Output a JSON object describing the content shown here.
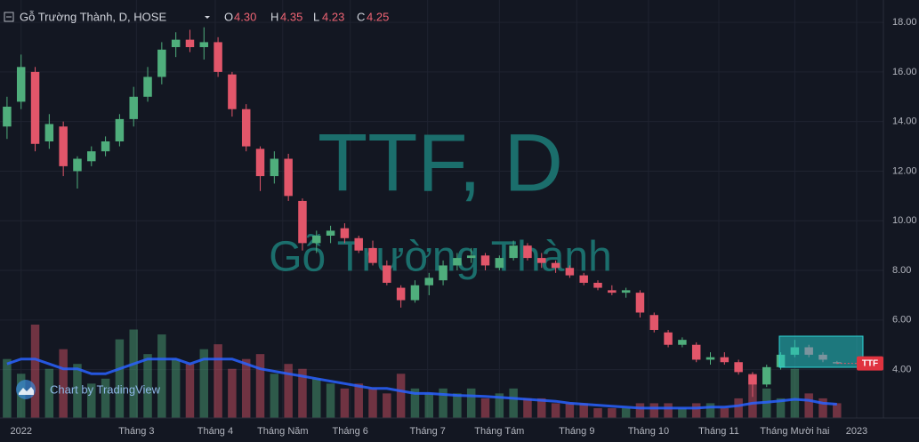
{
  "chart_data": {
    "type": "candlestick",
    "header": {
      "symbol": "Gỗ Trường Thành, D, HOSE",
      "open_label": "O",
      "open": "4.30",
      "high_label": "H",
      "high": "4.35",
      "low_label": "L",
      "low": "4.23",
      "close_label": "C",
      "close": "4.25"
    },
    "watermark_title": "TTF, D",
    "watermark_subtitle": "Gỗ Trường Thành",
    "price_tag": "TTF",
    "branding": "Chart by TradingView",
    "up_color": "#4fae7c",
    "down_color": "#e2566a",
    "volume_ma_color": "#2962ff",
    "grid": true,
    "open": [
      13.8,
      14.8,
      16.0,
      13.2,
      13.8,
      12.0,
      12.4,
      12.8,
      13.2,
      14.1,
      15.0,
      15.8,
      17.0,
      17.3,
      17.0,
      17.2,
      15.9,
      14.5,
      12.9,
      11.8,
      12.5,
      10.8,
      9.1,
      9.4,
      9.7,
      9.3,
      8.9,
      8.2,
      7.3,
      6.8,
      7.4,
      7.6,
      8.2,
      8.5,
      8.6,
      8.1,
      8.5,
      9.0,
      8.5,
      8.3,
      8.1,
      7.8,
      7.5,
      7.2,
      7.1,
      7.1,
      6.2,
      5.5,
      5.0,
      5.0,
      4.4,
      4.5,
      4.3,
      3.8,
      3.4,
      4.1,
      4.6,
      4.9,
      4.6,
      4.3
    ],
    "high": [
      15.0,
      16.7,
      16.2,
      14.3,
      14.0,
      12.6,
      13.0,
      13.4,
      14.3,
      15.4,
      16.2,
      17.2,
      17.6,
      17.7,
      17.8,
      17.4,
      16.0,
      14.7,
      13.0,
      12.8,
      12.7,
      10.9,
      9.6,
      9.8,
      9.9,
      9.4,
      9.2,
      8.4,
      7.4,
      7.6,
      7.9,
      8.4,
      8.7,
      8.9,
      8.7,
      8.6,
      9.2,
      9.1,
      8.7,
      8.4,
      8.2,
      7.9,
      7.6,
      7.4,
      7.3,
      7.2,
      6.3,
      5.6,
      5.3,
      5.1,
      4.7,
      4.7,
      4.4,
      3.9,
      4.2,
      4.7,
      5.2,
      5.0,
      4.7,
      4.35
    ],
    "low": [
      13.3,
      14.5,
      12.8,
      12.9,
      11.8,
      11.3,
      12.2,
      12.6,
      13.0,
      13.8,
      14.8,
      15.5,
      16.6,
      16.8,
      16.5,
      15.8,
      14.2,
      12.8,
      11.2,
      11.5,
      10.8,
      8.8,
      8.7,
      9.1,
      9.1,
      8.7,
      8.2,
      7.4,
      6.5,
      6.7,
      7.0,
      7.4,
      8.0,
      8.3,
      8.0,
      8.0,
      8.4,
      8.4,
      8.1,
      7.9,
      7.7,
      7.4,
      7.2,
      7.0,
      6.9,
      6.1,
      5.5,
      4.9,
      4.9,
      4.3,
      4.2,
      4.2,
      3.8,
      2.9,
      3.3,
      4.0,
      4.5,
      4.5,
      4.3,
      4.23
    ],
    "close": [
      14.6,
      16.2,
      13.1,
      13.9,
      12.2,
      12.5,
      12.8,
      13.2,
      14.1,
      15.0,
      15.8,
      16.9,
      17.3,
      17.0,
      17.2,
      16.0,
      14.5,
      13.0,
      11.8,
      12.5,
      11.0,
      9.1,
      9.4,
      9.6,
      9.3,
      8.8,
      8.3,
      7.5,
      6.8,
      7.4,
      7.7,
      8.2,
      8.5,
      8.6,
      8.2,
      8.5,
      9.0,
      8.5,
      8.3,
      8.1,
      7.8,
      7.5,
      7.3,
      7.1,
      7.2,
      6.3,
      5.6,
      5.0,
      5.2,
      4.4,
      4.5,
      4.3,
      3.9,
      3.4,
      4.1,
      4.6,
      4.9,
      4.6,
      4.4,
      4.25
    ],
    "volume": [
      1.2,
      0.9,
      1.9,
      1.0,
      1.4,
      1.1,
      0.7,
      0.8,
      1.6,
      1.8,
      1.3,
      1.7,
      1.2,
      1.1,
      1.4,
      1.5,
      1.0,
      1.2,
      1.3,
      0.9,
      1.1,
      1.0,
      0.8,
      0.7,
      0.6,
      0.7,
      0.6,
      0.5,
      0.9,
      0.6,
      0.5,
      0.6,
      0.5,
      0.6,
      0.4,
      0.5,
      0.6,
      0.4,
      0.4,
      0.3,
      0.3,
      0.3,
      0.2,
      0.2,
      0.2,
      0.3,
      0.3,
      0.3,
      0.2,
      0.3,
      0.3,
      0.2,
      0.4,
      0.9,
      0.6,
      0.4,
      1.0,
      0.5,
      0.4,
      0.3
    ],
    "volume_ma": [
      1.1,
      1.2,
      1.2,
      1.1,
      1.0,
      1.0,
      0.9,
      0.9,
      1.0,
      1.1,
      1.2,
      1.2,
      1.2,
      1.1,
      1.2,
      1.2,
      1.2,
      1.1,
      1.0,
      0.95,
      0.9,
      0.85,
      0.8,
      0.75,
      0.7,
      0.65,
      0.6,
      0.6,
      0.55,
      0.5,
      0.5,
      0.48,
      0.46,
      0.45,
      0.44,
      0.42,
      0.4,
      0.38,
      0.36,
      0.34,
      0.3,
      0.28,
      0.26,
      0.24,
      0.22,
      0.2,
      0.2,
      0.2,
      0.2,
      0.2,
      0.22,
      0.22,
      0.25,
      0.3,
      0.32,
      0.35,
      0.38,
      0.36,
      0.3,
      0.28
    ],
    "xlim": [
      -0.5,
      62.3
    ],
    "xticks": [
      {
        "value": 1,
        "label": "2022"
      },
      {
        "value": 9.2,
        "label": "Tháng 3"
      },
      {
        "value": 14.8,
        "label": "Tháng 4"
      },
      {
        "value": 19.6,
        "label": "Tháng Năm"
      },
      {
        "value": 24.4,
        "label": "Tháng 6"
      },
      {
        "value": 29.9,
        "label": "Tháng 7"
      },
      {
        "value": 35,
        "label": "Tháng Tám"
      },
      {
        "value": 40.5,
        "label": "Tháng 9"
      },
      {
        "value": 45.6,
        "label": "Tháng 10"
      },
      {
        "value": 50.6,
        "label": "Tháng 11"
      },
      {
        "value": 56,
        "label": "Tháng Mười hai"
      },
      {
        "value": 60.4,
        "label": "2023"
      }
    ],
    "ylim": [
      2.05,
      18.9
    ],
    "yticks": [
      {
        "value": 4,
        "label": "4.00"
      },
      {
        "value": 6,
        "label": "6.00"
      },
      {
        "value": 8,
        "label": "8.00"
      },
      {
        "value": 10,
        "label": "10.00"
      },
      {
        "value": 12,
        "label": "12.00"
      },
      {
        "value": 14,
        "label": "14.00"
      },
      {
        "value": 16,
        "label": "16.00"
      },
      {
        "value": 18,
        "label": "18.00"
      }
    ]
  }
}
